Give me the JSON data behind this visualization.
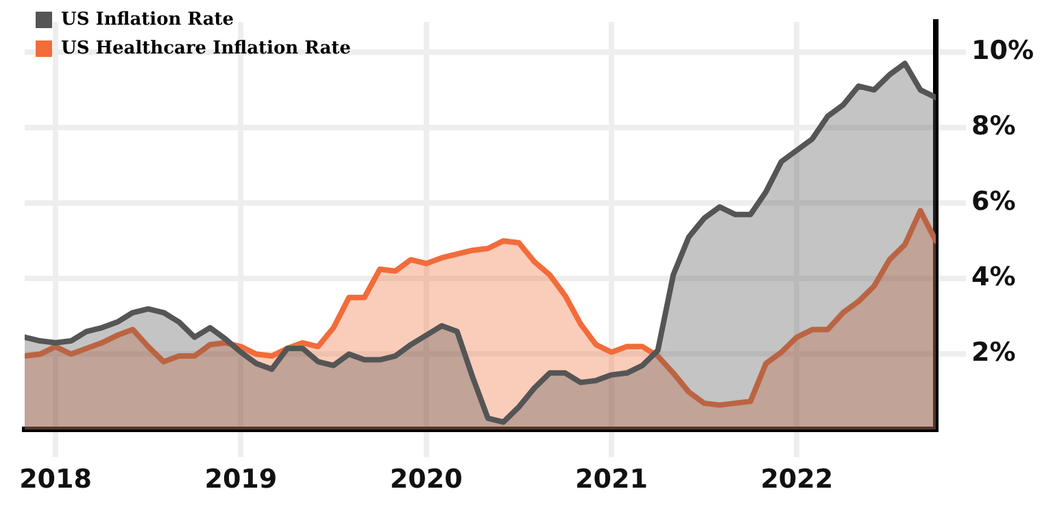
{
  "chart_data": {
    "type": "area",
    "x": [
      "2017-11",
      "2017-12",
      "2018-01",
      "2018-02",
      "2018-03",
      "2018-04",
      "2018-05",
      "2018-06",
      "2018-07",
      "2018-08",
      "2018-09",
      "2018-10",
      "2018-11",
      "2018-12",
      "2019-01",
      "2019-02",
      "2019-03",
      "2019-04",
      "2019-05",
      "2019-06",
      "2019-07",
      "2019-08",
      "2019-09",
      "2019-10",
      "2019-11",
      "2019-12",
      "2020-01",
      "2020-02",
      "2020-03",
      "2020-04",
      "2020-05",
      "2020-06",
      "2020-07",
      "2020-08",
      "2020-09",
      "2020-10",
      "2020-11",
      "2020-12",
      "2021-01",
      "2021-02",
      "2021-03",
      "2021-04",
      "2021-05",
      "2021-06",
      "2021-07",
      "2021-08",
      "2021-09",
      "2021-10",
      "2021-11",
      "2021-12",
      "2022-01",
      "2022-02",
      "2022-03",
      "2022-04",
      "2022-05",
      "2022-06",
      "2022-07",
      "2022-08",
      "2022-09",
      "2022-10"
    ],
    "series": [
      {
        "name": "US Inflation Rate",
        "color": "#555555",
        "values": [
          2.45,
          2.35,
          2.3,
          2.35,
          2.6,
          2.7,
          2.85,
          3.1,
          3.2,
          3.1,
          2.85,
          2.45,
          2.7,
          2.4,
          2.05,
          1.75,
          1.6,
          2.15,
          2.15,
          1.8,
          1.7,
          2.0,
          1.85,
          1.85,
          1.95,
          2.25,
          2.5,
          2.75,
          2.6,
          1.4,
          0.3,
          0.2,
          0.6,
          1.1,
          1.5,
          1.5,
          1.25,
          1.3,
          1.45,
          1.5,
          1.7,
          2.1,
          4.1,
          5.1,
          5.6,
          5.9,
          5.7,
          5.7,
          6.3,
          7.1,
          7.4,
          7.7,
          8.3,
          8.6,
          9.1,
          9.0,
          9.4,
          9.7,
          9.0,
          8.8
        ]
      },
      {
        "name": "US Healthcare Inflation Rate",
        "color": "#f26c3a",
        "values": [
          1.95,
          2.0,
          2.2,
          2.0,
          2.15,
          2.3,
          2.5,
          2.65,
          2.2,
          1.8,
          1.95,
          1.95,
          2.25,
          2.3,
          2.2,
          2.0,
          1.95,
          2.15,
          2.3,
          2.2,
          2.7,
          3.5,
          3.5,
          4.25,
          4.2,
          4.5,
          4.4,
          4.55,
          4.65,
          4.75,
          4.8,
          5.0,
          4.95,
          4.45,
          4.1,
          3.55,
          2.8,
          2.25,
          2.05,
          2.2,
          2.2,
          1.95,
          1.5,
          1.0,
          0.7,
          0.65,
          0.7,
          0.75,
          1.75,
          2.05,
          2.45,
          2.65,
          2.65,
          3.1,
          3.4,
          3.8,
          4.5,
          4.9,
          5.8,
          5.0
        ]
      }
    ],
    "xlim": [
      "2017-11",
      "2022-10"
    ],
    "xticks": [
      "2018",
      "2019",
      "2020",
      "2021",
      "2022"
    ],
    "ylim": [
      0,
      10.8
    ],
    "yticks": [
      {
        "value": 2,
        "label": "2%"
      },
      {
        "value": 4,
        "label": "4%"
      },
      {
        "value": 6,
        "label": "6%"
      },
      {
        "value": 8,
        "label": "8%"
      },
      {
        "value": 10,
        "label": "10%"
      }
    ],
    "grid": true,
    "legend": "top left"
  }
}
